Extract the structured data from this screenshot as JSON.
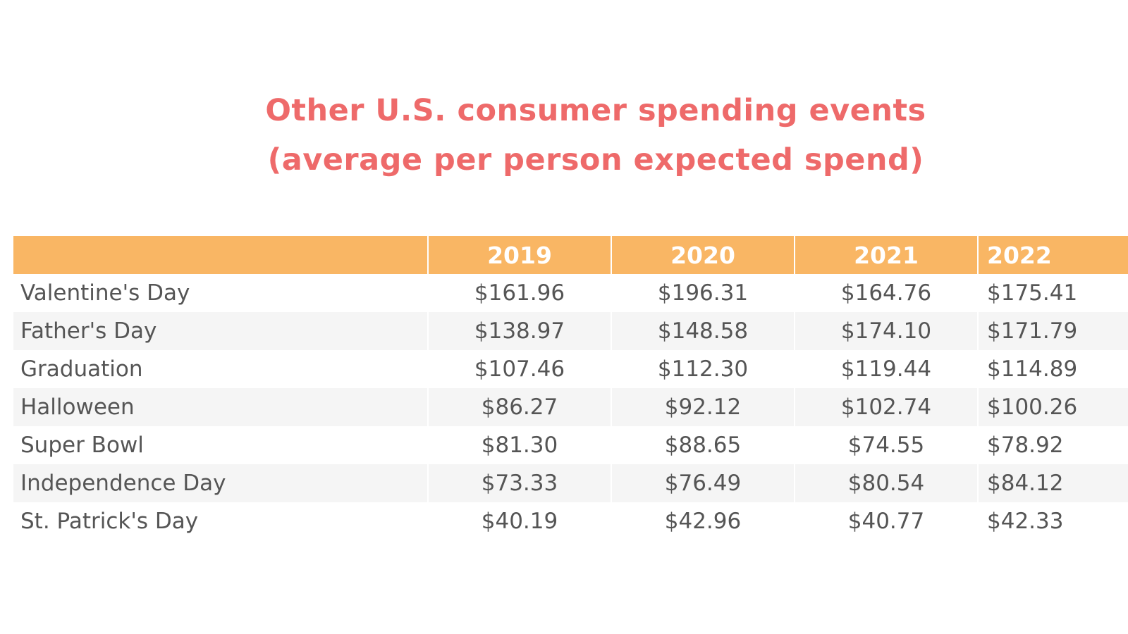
{
  "chart_data": {
    "type": "table",
    "title": "Other U.S. consumer spending events",
    "subtitle": "(average per person expected spend)",
    "columns": [
      "",
      "2019",
      "2020",
      "2021",
      "2022"
    ],
    "rows": [
      {
        "event": "Valentine's Day",
        "values": [
          "$161.96",
          "$196.31",
          "$164.76",
          "$175.41"
        ]
      },
      {
        "event": "Father's Day",
        "values": [
          "$138.97",
          "$148.58",
          "$174.10",
          "$171.79"
        ]
      },
      {
        "event": "Graduation",
        "values": [
          "$107.46",
          "$112.30",
          "$119.44",
          "$114.89"
        ]
      },
      {
        "event": "Halloween",
        "values": [
          "$86.27",
          "$92.12",
          "$102.74",
          "$100.26"
        ]
      },
      {
        "event": "Super Bowl",
        "values": [
          "$81.30",
          "$88.65",
          "$74.55",
          "$78.92"
        ]
      },
      {
        "event": "Independence Day",
        "values": [
          "$73.33",
          "$76.49",
          "$80.54",
          "$84.12"
        ]
      },
      {
        "event": "St. Patrick's Day",
        "values": [
          "$40.19",
          "$42.96",
          "$40.77",
          "$42.33"
        ]
      }
    ]
  },
  "colors": {
    "title": "#ee6a6a",
    "header_background": "#f9b664",
    "header_text": "#ffffff",
    "row_alt_background": "#f5f5f5",
    "cell_text": "#555555"
  }
}
